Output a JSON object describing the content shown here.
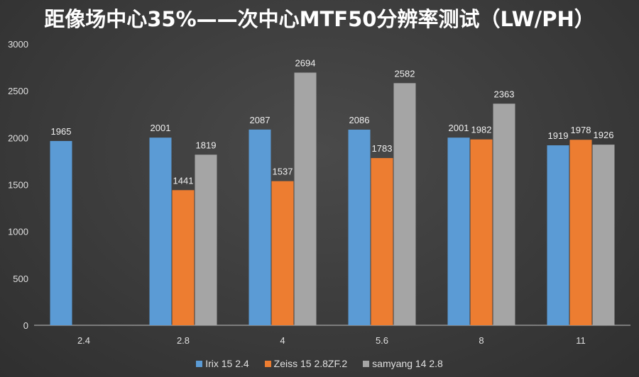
{
  "chart_data": {
    "type": "bar",
    "title": "距像场中心35%——次中心MTF50分辨率测试（LW/PH）",
    "xlabel": "",
    "ylabel": "",
    "ylim": [
      0,
      3000
    ],
    "yticks": [
      0,
      500,
      1000,
      1500,
      2000,
      2500,
      3000
    ],
    "grid": false,
    "legend_position": "bottom",
    "categories": [
      "2.4",
      "2.8",
      "4",
      "5.6",
      "8",
      "11"
    ],
    "series": [
      {
        "name": "Irix 15 2.4",
        "color": "#5b9bd5",
        "values": [
          1965,
          2001,
          2087,
          2086,
          2001,
          1919
        ]
      },
      {
        "name": "Zeiss 15 2.8ZF.2",
        "color": "#ed7d31",
        "values": [
          null,
          1441,
          1537,
          1783,
          1982,
          1978
        ]
      },
      {
        "name": "samyang 14 2.8",
        "color": "#a5a5a5",
        "values": [
          null,
          1819,
          2694,
          2582,
          2363,
          1926
        ]
      }
    ]
  }
}
